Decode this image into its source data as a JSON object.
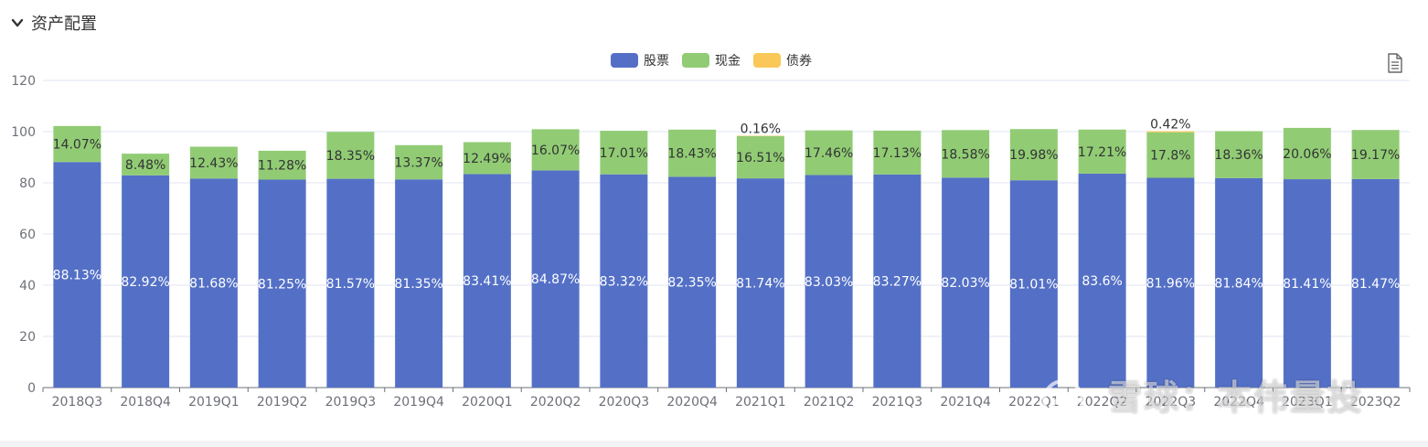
{
  "header": {
    "title": "资产配置",
    "toggle_icon": "chevron-down-icon"
  },
  "toolbar": {
    "data_view_icon": "document-icon"
  },
  "legend": [
    {
      "name": "股票",
      "color": "#5470c6"
    },
    {
      "name": "现金",
      "color": "#91cc75"
    },
    {
      "name": "债券",
      "color": "#fac858"
    }
  ],
  "watermark": {
    "text": "雪球：本伟量投"
  },
  "chart_data": {
    "type": "bar",
    "stacked": true,
    "categories": [
      "2018Q3",
      "2018Q4",
      "2019Q1",
      "2019Q2",
      "2019Q3",
      "2019Q4",
      "2020Q1",
      "2020Q2",
      "2020Q3",
      "2020Q4",
      "2021Q1",
      "2021Q2",
      "2021Q3",
      "2021Q4",
      "2022Q1",
      "2022Q2",
      "2022Q3",
      "2022Q4",
      "2023Q1",
      "2023Q2"
    ],
    "series": [
      {
        "name": "股票",
        "color": "#5470c6",
        "values": [
          88.13,
          82.92,
          81.68,
          81.25,
          81.57,
          81.35,
          83.41,
          84.87,
          83.32,
          82.35,
          81.74,
          83.03,
          83.27,
          82.03,
          81.01,
          83.6,
          81.96,
          81.84,
          81.41,
          81.47
        ],
        "labels": [
          "88.13%",
          "82.92%",
          "81.68%",
          "81.25%",
          "81.57%",
          "81.35%",
          "83.41%",
          "84.87%",
          "83.32%",
          "82.35%",
          "81.74%",
          "83.03%",
          "83.27%",
          "82.03%",
          "81.01%",
          "83.6%",
          "81.96%",
          "81.84%",
          "81.41%",
          "81.47%"
        ]
      },
      {
        "name": "现金",
        "color": "#91cc75",
        "values": [
          14.07,
          8.48,
          12.43,
          11.28,
          18.35,
          13.37,
          12.49,
          16.07,
          17.01,
          18.43,
          16.51,
          17.46,
          17.13,
          18.58,
          19.98,
          17.21,
          17.8,
          18.36,
          20.06,
          19.17
        ],
        "labels": [
          "14.07%",
          "8.48%",
          "12.43%",
          "11.28%",
          "18.35%",
          "13.37%",
          "12.49%",
          "16.07%",
          "17.01%",
          "18.43%",
          "16.51%",
          "17.46%",
          "17.13%",
          "18.58%",
          "19.98%",
          "17.21%",
          "17.8%",
          "18.36%",
          "20.06%",
          "19.17%"
        ]
      },
      {
        "name": "债券",
        "color": "#fac858",
        "values": [
          0,
          0,
          0,
          0,
          0,
          0,
          0,
          0,
          0,
          0,
          0.16,
          0,
          0,
          0,
          0,
          0,
          0.42,
          0,
          0,
          0
        ],
        "labels": [
          "",
          "",
          "",
          "",
          "",
          "",
          "",
          "",
          "",
          "",
          "0.16%",
          "",
          "",
          "",
          "",
          "",
          "0.42%",
          "",
          "",
          ""
        ]
      }
    ],
    "ylim": [
      0,
      120
    ],
    "yticks": [
      0,
      20,
      40,
      60,
      80,
      100,
      120
    ],
    "grid": true,
    "legend_position": "top-center"
  }
}
